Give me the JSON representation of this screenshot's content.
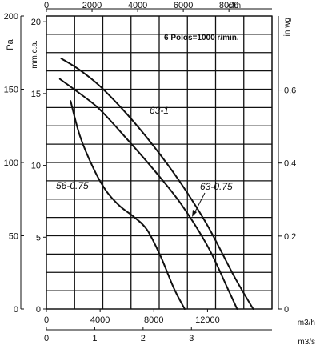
{
  "chart_data": {
    "type": "line",
    "title": "",
    "annotation": "6 Polos=1000 r/min.",
    "x_axes": {
      "m3h": {
        "label": "m3/h",
        "ticks": [
          0,
          4000,
          8000,
          12000
        ],
        "range": [
          0,
          16800
        ]
      },
      "m3s": {
        "label": "m3/s",
        "ticks": [
          0,
          1,
          2,
          3
        ],
        "range": [
          0,
          4.667
        ]
      },
      "cfm": {
        "label": "cfm",
        "ticks": [
          0,
          2000,
          4000,
          6000,
          8000
        ],
        "range": [
          0,
          9888
        ]
      }
    },
    "y_axes": {
      "pa": {
        "label": "Pa",
        "ticks": [
          0,
          50,
          100,
          150,
          200
        ],
        "range": [
          0,
          200
        ]
      },
      "mmca": {
        "label": "mm.c.a.",
        "ticks": [
          0,
          5,
          10,
          15,
          20
        ],
        "range": [
          0,
          20.4
        ]
      },
      "inwg": {
        "label": "in wg",
        "ticks": [
          0,
          0.2,
          0.4,
          0.6
        ],
        "range": [
          0,
          0.803
        ]
      }
    },
    "grid": true,
    "grid_x": [
      0,
      2100,
      4200,
      6300,
      8400,
      10500,
      12600,
      14700,
      16800
    ],
    "grid_y": [
      0,
      12.5,
      25,
      37.5,
      50,
      62.5,
      75,
      87.5,
      100,
      112.5,
      125,
      137.5,
      150,
      162.5,
      175,
      187.5,
      200
    ],
    "series": [
      {
        "name": "63-1",
        "points": [
          [
            1100,
            171
          ],
          [
            2500,
            163
          ],
          [
            4000,
            152
          ],
          [
            6000,
            133
          ],
          [
            8000,
            111
          ],
          [
            10000,
            86
          ],
          [
            12000,
            57
          ],
          [
            14000,
            22
          ],
          [
            15400,
            0
          ]
        ]
      },
      {
        "name": "63-0.75",
        "points": [
          [
            1000,
            157
          ],
          [
            2500,
            147
          ],
          [
            4000,
            136
          ],
          [
            6000,
            116
          ],
          [
            8000,
            95
          ],
          [
            10000,
            72
          ],
          [
            12000,
            43
          ],
          [
            13500,
            14
          ],
          [
            14200,
            0
          ]
        ]
      },
      {
        "name": "56-0.75",
        "points": [
          [
            1800,
            142
          ],
          [
            2500,
            118
          ],
          [
            3500,
            96
          ],
          [
            4500,
            80
          ],
          [
            5500,
            70
          ],
          [
            6500,
            63
          ],
          [
            7500,
            54
          ],
          [
            8500,
            36
          ],
          [
            9500,
            14
          ],
          [
            10300,
            0
          ]
        ]
      }
    ]
  }
}
